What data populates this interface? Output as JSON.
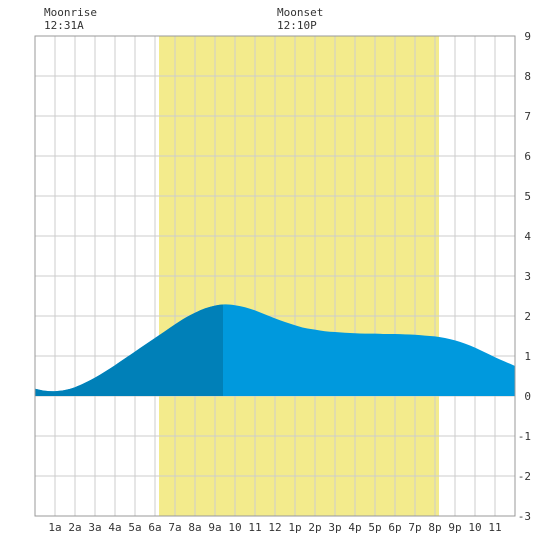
{
  "annotations": {
    "moonrise": {
      "label": "Moonrise",
      "time": "12:31A",
      "hour": 0.52
    },
    "moonset": {
      "label": "Moonset",
      "time": "12:10P",
      "hour": 12.17
    }
  },
  "chart_data": {
    "type": "area",
    "title": "",
    "xlabel": "",
    "ylabel": "",
    "xlim": [
      0,
      24
    ],
    "ylim": [
      -3,
      9
    ],
    "grid": true,
    "x_ticks": [
      {
        "hour": 1,
        "label": "1a"
      },
      {
        "hour": 2,
        "label": "2a"
      },
      {
        "hour": 3,
        "label": "3a"
      },
      {
        "hour": 4,
        "label": "4a"
      },
      {
        "hour": 5,
        "label": "5a"
      },
      {
        "hour": 6,
        "label": "6a"
      },
      {
        "hour": 7,
        "label": "7a"
      },
      {
        "hour": 8,
        "label": "8a"
      },
      {
        "hour": 9,
        "label": "9a"
      },
      {
        "hour": 10,
        "label": "10"
      },
      {
        "hour": 11,
        "label": "11"
      },
      {
        "hour": 12,
        "label": "12"
      },
      {
        "hour": 13,
        "label": "1p"
      },
      {
        "hour": 14,
        "label": "2p"
      },
      {
        "hour": 15,
        "label": "3p"
      },
      {
        "hour": 16,
        "label": "4p"
      },
      {
        "hour": 17,
        "label": "5p"
      },
      {
        "hour": 18,
        "label": "6p"
      },
      {
        "hour": 19,
        "label": "7p"
      },
      {
        "hour": 20,
        "label": "8p"
      },
      {
        "hour": 21,
        "label": "9p"
      },
      {
        "hour": 22,
        "label": "10"
      },
      {
        "hour": 23,
        "label": "11"
      }
    ],
    "y_ticks": [
      -3,
      -2,
      -1,
      0,
      1,
      2,
      3,
      4,
      5,
      6,
      7,
      8,
      9
    ],
    "daylight": {
      "start_hour": 6.2,
      "end_hour": 20.2,
      "color": "#f3eb8c"
    },
    "highlight_until_hour": 9.4,
    "colors": {
      "tide": "#0099dd",
      "tide_highlight": "#0080b8",
      "grid": "#cccccc"
    },
    "series": [
      {
        "x": [
          0,
          0.5,
          1,
          1.5,
          2,
          2.5,
          3,
          3.5,
          4,
          4.5,
          5,
          5.5,
          6,
          6.5,
          7,
          7.5,
          8,
          8.5,
          9,
          9.5,
          10,
          10.5,
          11,
          11.5,
          12,
          12.5,
          13,
          13.5,
          14,
          14.5,
          15,
          15.5,
          16,
          16.5,
          17,
          17.5,
          18,
          18.5,
          19,
          19.5,
          20,
          20.5,
          21,
          21.5,
          22,
          22.5,
          23,
          23.5,
          24
        ],
        "values": [
          0.18,
          0.13,
          0.12,
          0.15,
          0.22,
          0.33,
          0.46,
          0.61,
          0.77,
          0.94,
          1.11,
          1.28,
          1.45,
          1.62,
          1.79,
          1.95,
          2.08,
          2.19,
          2.26,
          2.29,
          2.27,
          2.22,
          2.14,
          2.04,
          1.94,
          1.85,
          1.77,
          1.7,
          1.66,
          1.62,
          1.6,
          1.58,
          1.57,
          1.56,
          1.56,
          1.55,
          1.55,
          1.54,
          1.53,
          1.51,
          1.49,
          1.45,
          1.39,
          1.31,
          1.21,
          1.09,
          0.97,
          0.86,
          0.75
        ]
      }
    ]
  }
}
